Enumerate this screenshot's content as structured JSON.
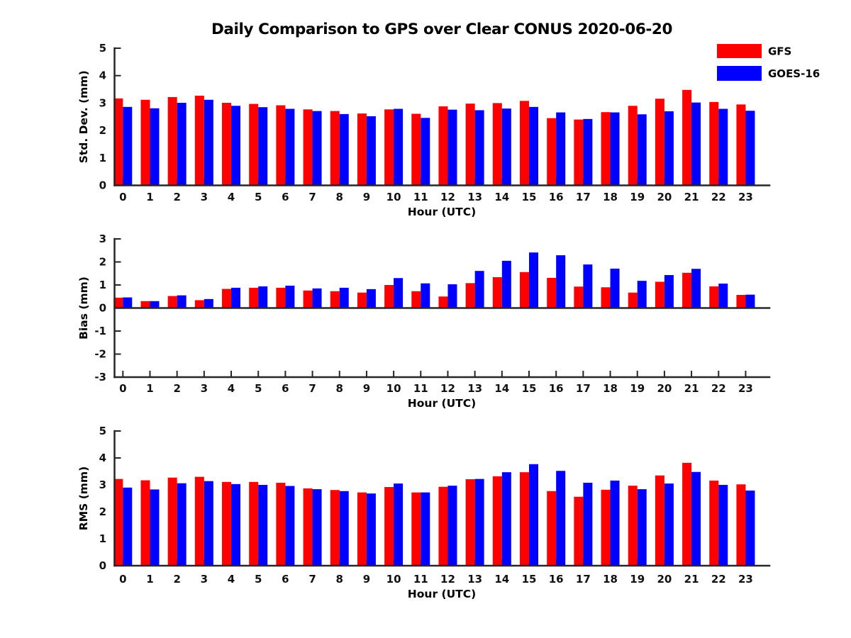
{
  "figure": {
    "title": "Daily Comparison to GPS over Clear CONUS 2020-06-20"
  },
  "legend": {
    "items": [
      {
        "label": "GFS",
        "color": "#ff0000"
      },
      {
        "label": "GOES-16",
        "color": "#0000ff"
      }
    ]
  },
  "chart_data": [
    {
      "type": "bar",
      "ylabel": "Std. Dev. (mm)",
      "xlabel": "Hour (UTC)",
      "categories": [
        "0",
        "1",
        "2",
        "3",
        "4",
        "5",
        "6",
        "7",
        "8",
        "9",
        "10",
        "11",
        "12",
        "13",
        "14",
        "15",
        "16",
        "17",
        "18",
        "19",
        "20",
        "21",
        "22",
        "23"
      ],
      "ylim": [
        0,
        5
      ],
      "yticks": [
        0,
        1,
        2,
        3,
        4,
        5
      ],
      "grid": false,
      "legend_position": "top-right",
      "series": [
        {
          "name": "GFS",
          "color": "#ff0000",
          "values": [
            3.17,
            3.12,
            3.22,
            3.27,
            3.01,
            2.97,
            2.92,
            2.77,
            2.71,
            2.62,
            2.77,
            2.61,
            2.88,
            2.98,
            3.0,
            3.08,
            2.45,
            2.4,
            2.67,
            2.9,
            3.16,
            3.48,
            3.04,
            2.95
          ]
        },
        {
          "name": "GOES-16",
          "color": "#0000ff",
          "values": [
            2.86,
            2.81,
            3.01,
            3.12,
            2.9,
            2.85,
            2.79,
            2.71,
            2.6,
            2.52,
            2.79,
            2.46,
            2.76,
            2.74,
            2.8,
            2.86,
            2.66,
            2.42,
            2.66,
            2.59,
            2.7,
            3.02,
            2.79,
            2.72
          ]
        }
      ]
    },
    {
      "type": "bar",
      "ylabel": "Bias (mm)",
      "xlabel": "Hour (UTC)",
      "categories": [
        "0",
        "1",
        "2",
        "3",
        "4",
        "5",
        "6",
        "7",
        "8",
        "9",
        "10",
        "11",
        "12",
        "13",
        "14",
        "15",
        "16",
        "17",
        "18",
        "19",
        "20",
        "21",
        "22",
        "23"
      ],
      "ylim": [
        -3,
        3
      ],
      "yticks": [
        -3,
        -2,
        -1,
        0,
        1,
        2,
        3
      ],
      "grid": false,
      "series": [
        {
          "name": "GFS",
          "color": "#ff0000",
          "values": [
            0.45,
            0.3,
            0.52,
            0.34,
            0.83,
            0.88,
            0.88,
            0.76,
            0.73,
            0.67,
            1.0,
            0.73,
            0.5,
            1.08,
            1.34,
            1.56,
            1.31,
            0.93,
            0.9,
            0.67,
            1.14,
            1.53,
            0.94,
            0.57
          ]
        },
        {
          "name": "GOES-16",
          "color": "#0000ff",
          "values": [
            0.46,
            0.3,
            0.55,
            0.39,
            0.88,
            0.94,
            0.97,
            0.85,
            0.88,
            0.82,
            1.3,
            1.07,
            1.03,
            1.61,
            2.05,
            2.41,
            2.29,
            1.89,
            1.71,
            1.18,
            1.43,
            1.7,
            1.06,
            0.58
          ]
        }
      ]
    },
    {
      "type": "bar",
      "ylabel": "RMS (mm)",
      "xlabel": "Hour (UTC)",
      "categories": [
        "0",
        "1",
        "2",
        "3",
        "4",
        "5",
        "6",
        "7",
        "8",
        "9",
        "10",
        "11",
        "12",
        "13",
        "14",
        "15",
        "16",
        "17",
        "18",
        "19",
        "20",
        "21",
        "22",
        "23"
      ],
      "ylim": [
        0,
        5
      ],
      "yticks": [
        0,
        1,
        2,
        3,
        4,
        5
      ],
      "grid": false,
      "series": [
        {
          "name": "GFS",
          "color": "#ff0000",
          "values": [
            3.22,
            3.17,
            3.27,
            3.3,
            3.11,
            3.11,
            3.08,
            2.87,
            2.81,
            2.72,
            2.92,
            2.72,
            2.93,
            3.21,
            3.32,
            3.47,
            2.77,
            2.56,
            2.82,
            2.97,
            3.35,
            3.82,
            3.16,
            3.02
          ]
        },
        {
          "name": "GOES-16",
          "color": "#0000ff",
          "values": [
            2.9,
            2.83,
            3.06,
            3.14,
            3.03,
            3.0,
            2.96,
            2.84,
            2.77,
            2.68,
            3.05,
            2.72,
            2.97,
            3.22,
            3.47,
            3.77,
            3.52,
            3.08,
            3.16,
            2.84,
            3.05,
            3.48,
            3.0,
            2.79
          ]
        }
      ]
    }
  ]
}
